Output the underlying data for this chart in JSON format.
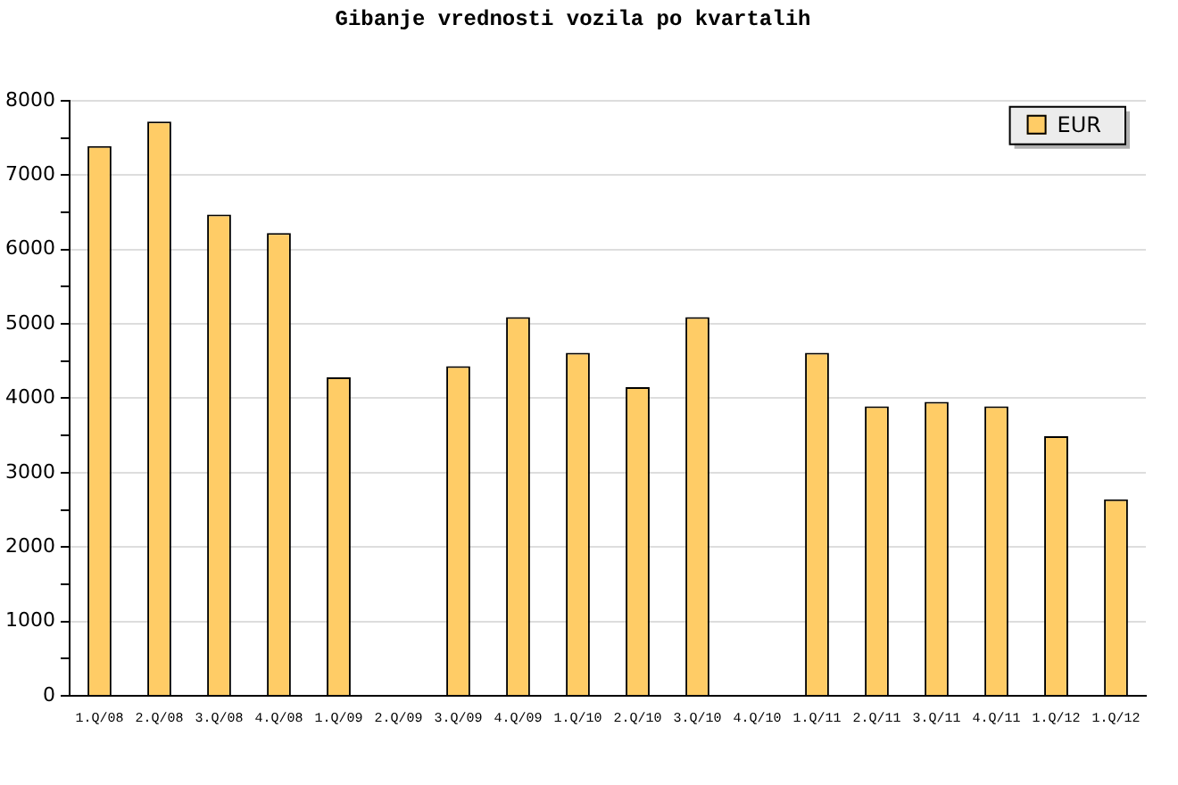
{
  "chart_data": {
    "type": "bar",
    "title": "Gibanje vrednosti vozila po kvartalih",
    "categories": [
      "1.Q/08",
      "2.Q/08",
      "3.Q/08",
      "4.Q/08",
      "1.Q/09",
      "2.Q/09",
      "3.Q/09",
      "4.Q/09",
      "1.Q/10",
      "2.Q/10",
      "3.Q/10",
      "4.Q/10",
      "1.Q/11",
      "2.Q/11",
      "3.Q/11",
      "4.Q/11",
      "1.Q/12",
      "1.Q/12"
    ],
    "series": [
      {
        "name": "EUR",
        "color": "#ffcc66",
        "values": [
          7390,
          7720,
          6470,
          6220,
          4280,
          null,
          4430,
          5090,
          4610,
          4150,
          5090,
          null,
          4610,
          3890,
          3950,
          3890,
          3490,
          2640
        ]
      }
    ],
    "ylim": [
      0,
      8000
    ],
    "yticks": [
      0,
      {
        "value": 500,
        "label": null
      },
      1000,
      {
        "value": 1500,
        "label": null
      },
      2000,
      {
        "value": 2500,
        "label": null
      },
      3000,
      {
        "value": 3500,
        "label": null
      },
      4000,
      {
        "value": 4500,
        "label": null
      },
      5000,
      {
        "value": 5500,
        "label": null
      },
      6000,
      {
        "value": 6500,
        "label": null
      },
      7000,
      {
        "value": 7500,
        "label": null
      },
      8000
    ],
    "grid": "y",
    "legend": "top right"
  }
}
